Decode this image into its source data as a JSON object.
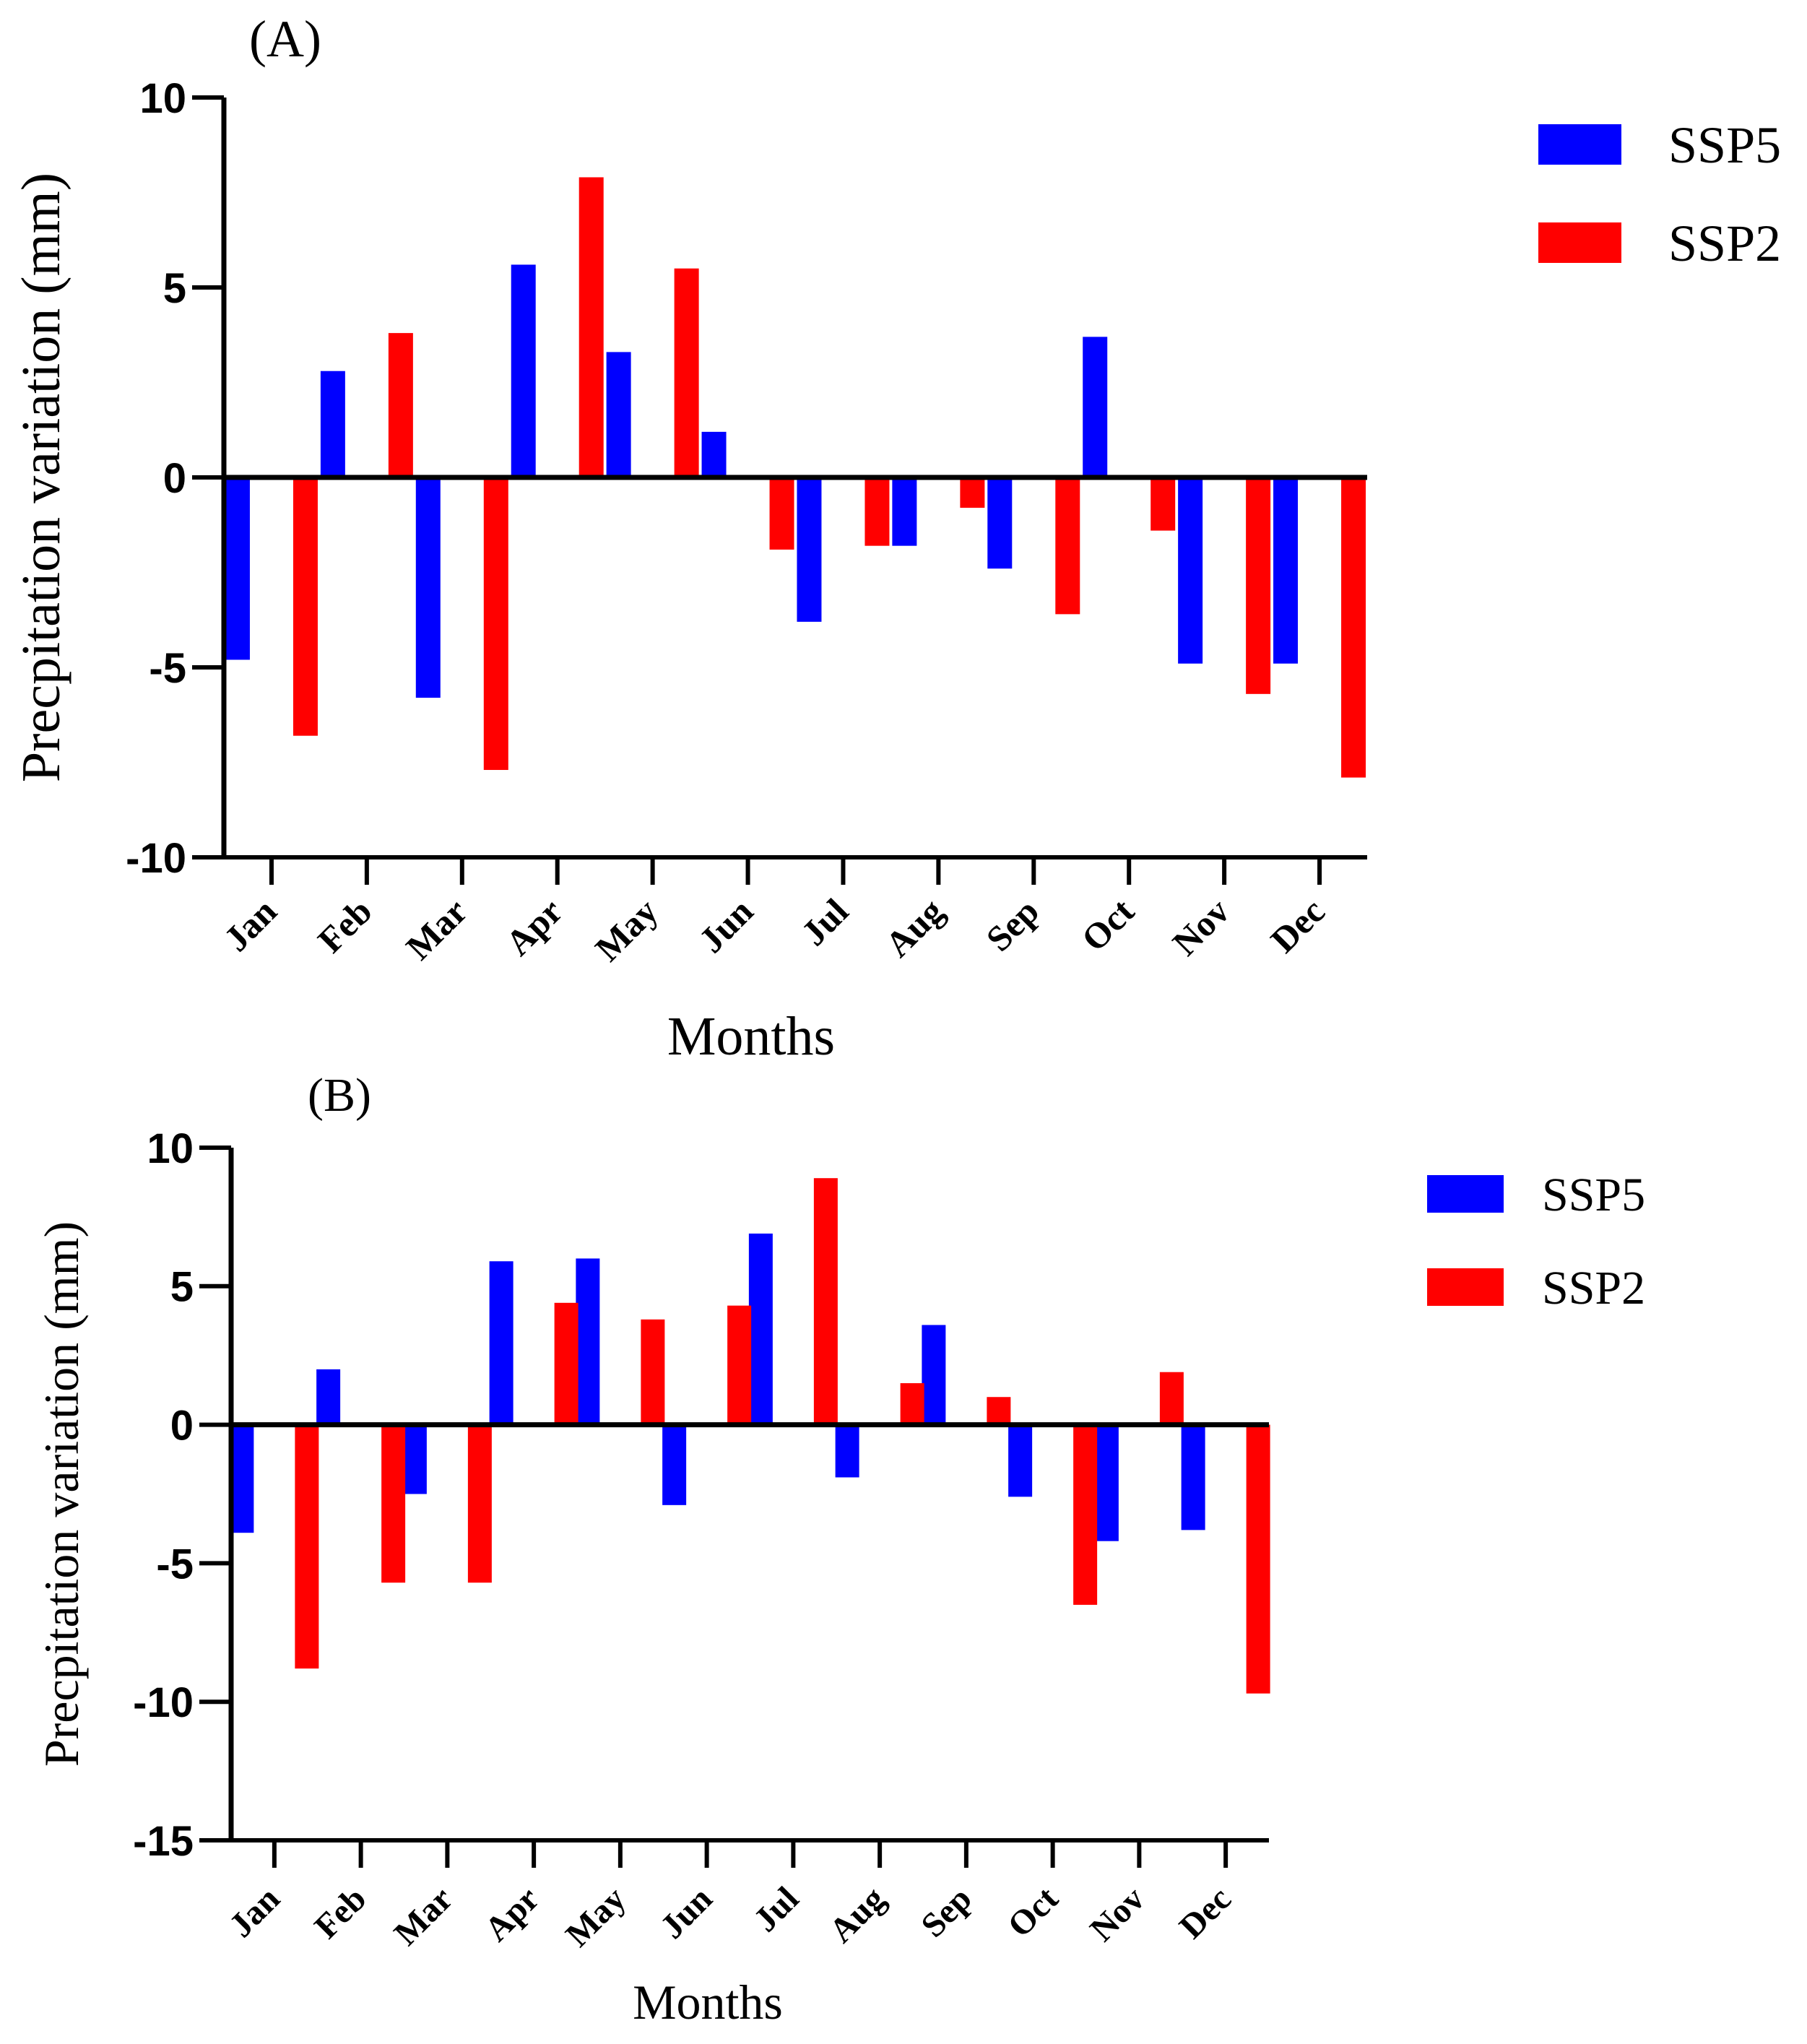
{
  "chart_data": [
    {
      "type": "bar",
      "panel_label": "(A)",
      "categories": [
        "Jan",
        "Feb",
        "Mar",
        "Apr",
        "May",
        "Jun",
        "Jul",
        "Aug",
        "Sep",
        "Oct",
        "Nov",
        "Dec"
      ],
      "series": [
        {
          "name": "SSP5",
          "color": "#0000ff",
          "values": [
            -4.8,
            2.8,
            -5.8,
            5.6,
            3.3,
            1.2,
            -3.8,
            -1.8,
            -2.4,
            3.7,
            -4.9,
            -4.9
          ]
        },
        {
          "name": "SSP2",
          "color": "#ff0000",
          "values": [
            -6.8,
            3.8,
            -7.7,
            7.9,
            5.5,
            -1.9,
            -1.8,
            -0.8,
            -3.6,
            -1.4,
            -5.7,
            -7.9
          ]
        }
      ],
      "xlabel": "Months",
      "ylabel": "Precpitation variation (mm)",
      "ylim": [
        -10,
        10
      ],
      "yticks": [
        -10,
        -5,
        0,
        5,
        10
      ],
      "ytick_labels": [
        "-10",
        "-5",
        "0",
        "5",
        "10"
      ],
      "legend_position": "top-right",
      "grid": false
    },
    {
      "type": "bar",
      "panel_label": "(B)",
      "categories": [
        "Jan",
        "Feb",
        "Mar",
        "Apr",
        "May",
        "Jun",
        "Jul",
        "Aug",
        "Sep",
        "Oct",
        "Nov",
        "Dec"
      ],
      "series": [
        {
          "name": "SSP5",
          "color": "#0000ff",
          "values": [
            -3.9,
            2.0,
            -2.5,
            5.9,
            6.0,
            -2.9,
            6.9,
            -1.9,
            3.6,
            -2.6,
            -4.2,
            -3.8
          ]
        },
        {
          "name": "SSP2",
          "color": "#ff0000",
          "values": [
            -8.8,
            -5.7,
            -5.7,
            4.4,
            3.8,
            4.3,
            8.9,
            1.5,
            1.0,
            -6.5,
            1.9,
            -9.7
          ]
        }
      ],
      "xlabel": "Months",
      "ylabel": "Precpitation variation (mm)",
      "ylim": [
        -15,
        10
      ],
      "yticks": [
        -15,
        -10,
        -5,
        0,
        5,
        10
      ],
      "ytick_labels": [
        "-15",
        "-10",
        "-5",
        "0",
        "5",
        "10"
      ],
      "legend_position": "top-right",
      "grid": false
    }
  ]
}
